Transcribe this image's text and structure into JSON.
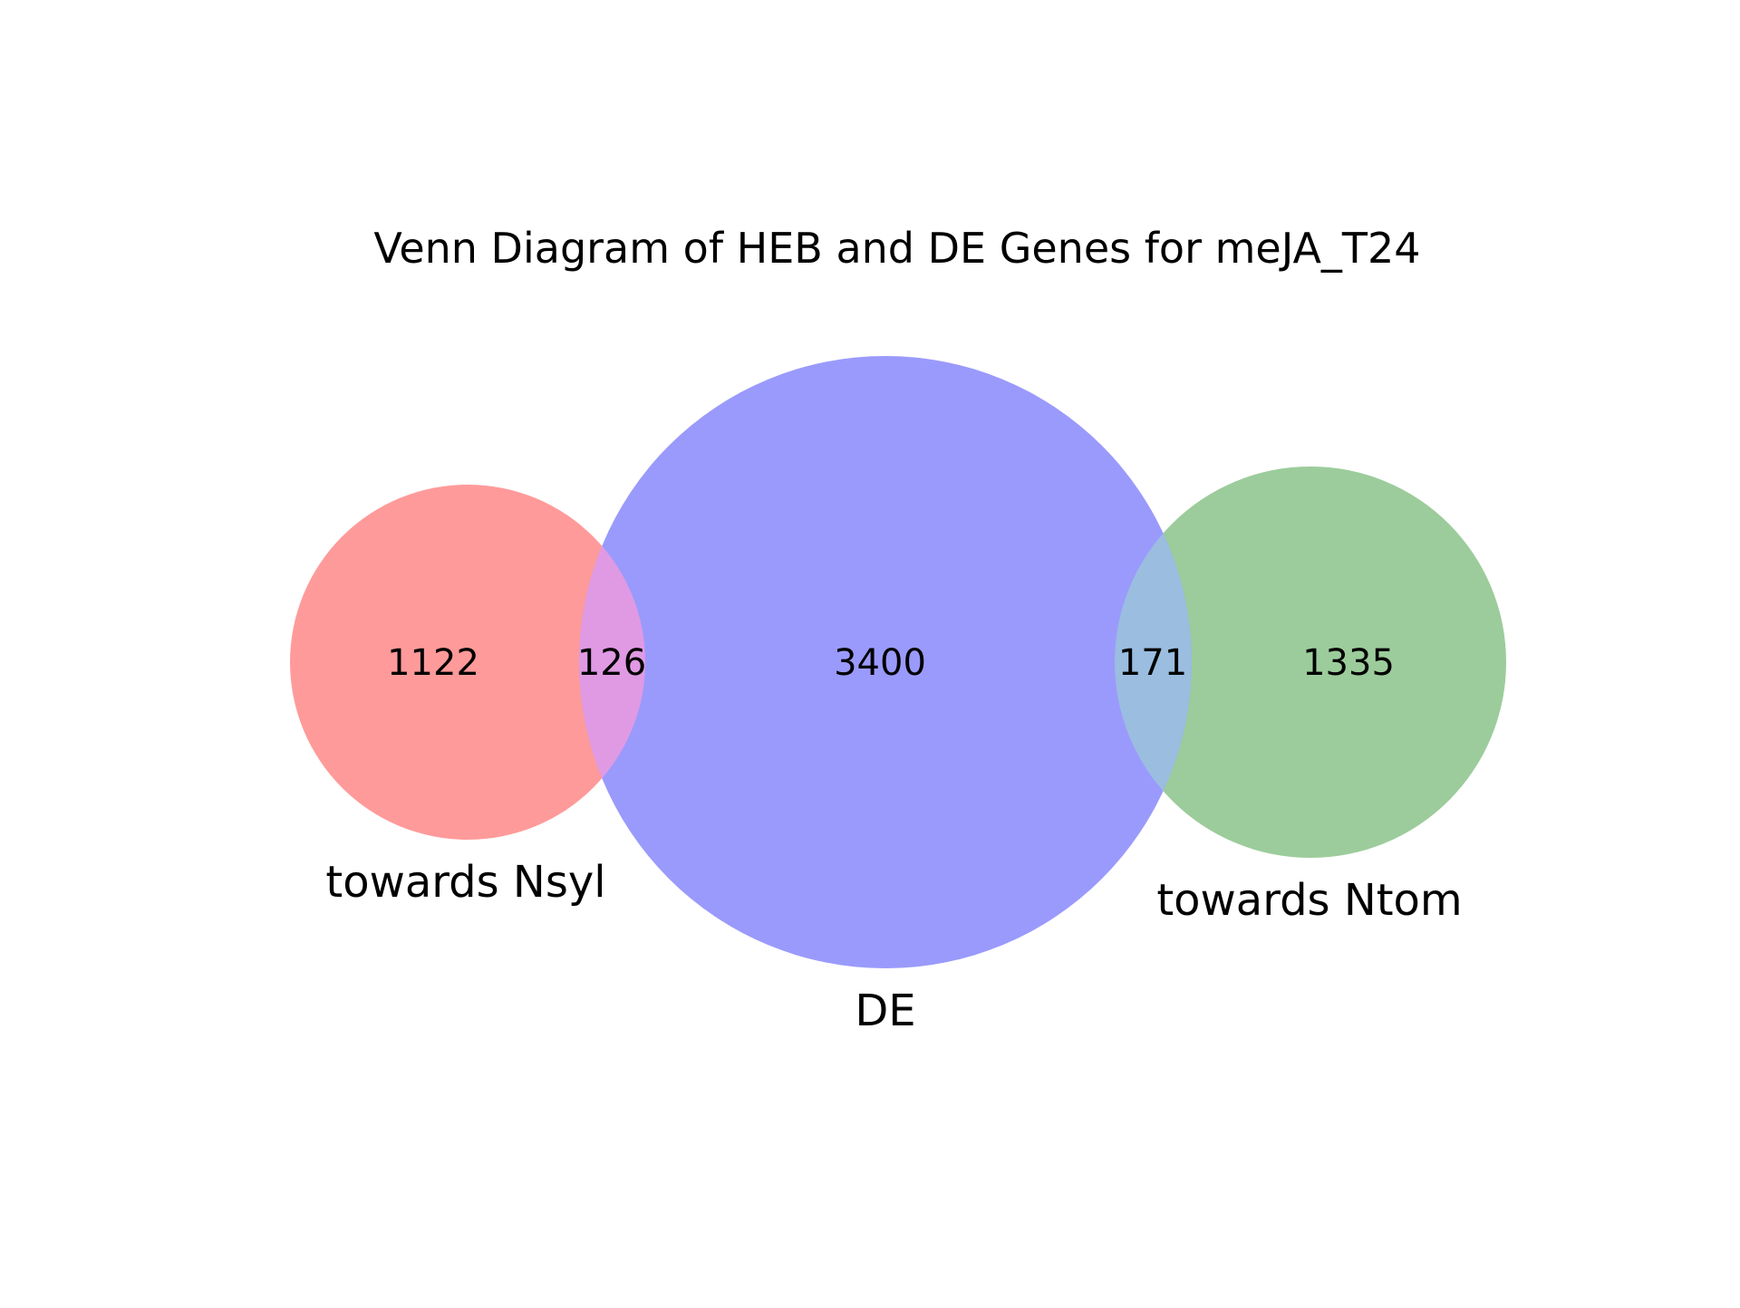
{
  "title": "Venn Diagram of HEB and DE Genes for meJA_T24",
  "sets": {
    "left": {
      "label": "towards Nsyl",
      "color": "#ff9a9a"
    },
    "center": {
      "label": "DE",
      "color": "#9a9afc"
    },
    "right": {
      "label": "towards Ntom",
      "color": "#9ccc9b"
    }
  },
  "regions": {
    "left_only": "1122",
    "left_center": "126",
    "center_only": "3400",
    "center_right": "171",
    "right_only": "1335"
  },
  "overlap_colors": {
    "left_center": "#e09ae3",
    "center_right": "#9abde0"
  }
}
